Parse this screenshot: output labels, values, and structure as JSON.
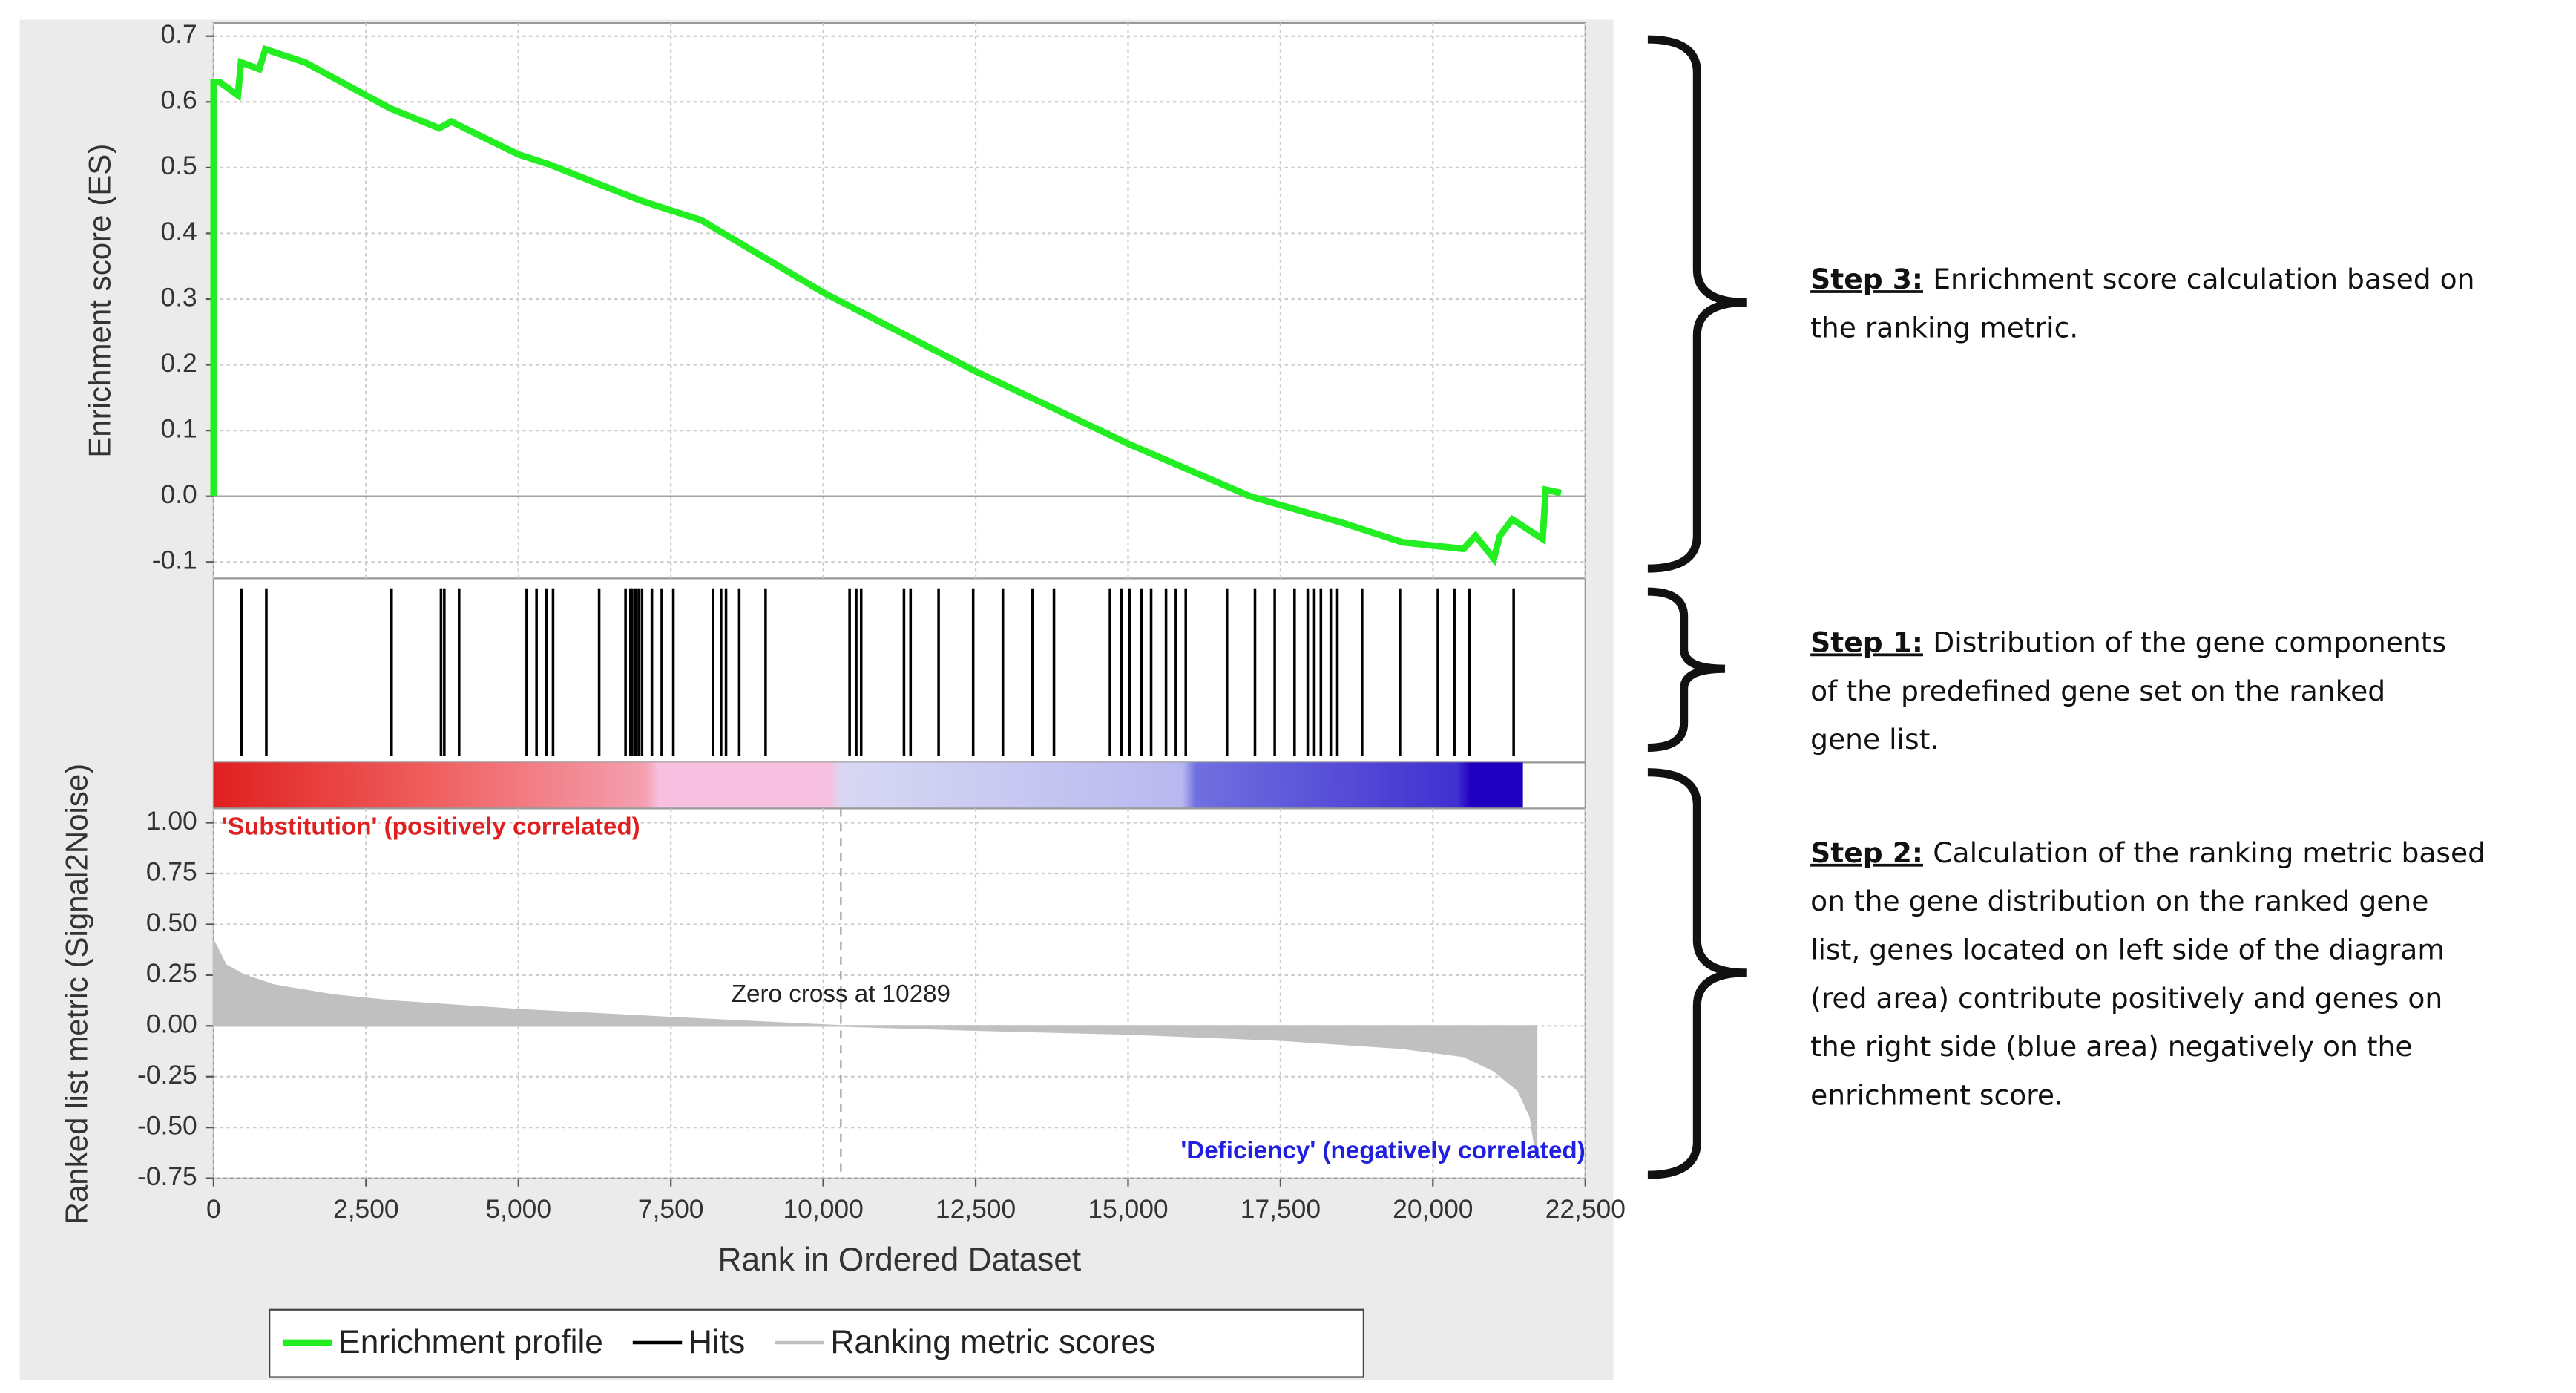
{
  "chart_data": [
    {
      "type": "line",
      "name": "Enrichment profile",
      "ylabel": "Enrichment score (ES)",
      "color": "#22ee22",
      "x": [
        0,
        0,
        100,
        400,
        450,
        750,
        850,
        1500,
        2900,
        3700,
        3900,
        5000,
        5500,
        7000,
        8000,
        10000,
        12500,
        15000,
        17000,
        18500,
        19500,
        20500,
        20700,
        21000,
        21100,
        21300,
        21800,
        21850,
        22100
      ],
      "values": [
        0,
        0.63,
        0.63,
        0.61,
        0.66,
        0.65,
        0.68,
        0.66,
        0.59,
        0.56,
        0.57,
        0.52,
        0.505,
        0.45,
        0.42,
        0.31,
        0.19,
        0.08,
        0.0,
        -0.04,
        -0.07,
        -0.08,
        -0.06,
        -0.095,
        -0.06,
        -0.035,
        -0.065,
        0.01,
        0.005
      ],
      "xlim": [
        0,
        22500
      ],
      "ylim": [
        -0.125,
        0.72
      ],
      "yticks": [
        -0.1,
        {
          "value": 0,
          "label": "0.0"
        },
        0.1,
        0.2,
        0.3,
        0.4,
        0.5,
        0.6,
        0.7
      ],
      "grid": true
    },
    {
      "type": "hits",
      "name": "Hits",
      "color": "#000000",
      "xlim": [
        0,
        22500
      ],
      "x": [
        459,
        865,
        2919,
        3730,
        3784,
        4027,
        5135,
        5297,
        5459,
        5568,
        6324,
        6757,
        6838,
        6865,
        6919,
        6973,
        7027,
        7189,
        7351,
        7541,
        8189,
        8324,
        8405,
        8622,
        9054,
        10432,
        10541,
        10622,
        11324,
        11432,
        11892,
        12459,
        12946,
        13432,
        13784,
        14703,
        14892,
        15027,
        15216,
        15378,
        15622,
        15784,
        15946,
        16622,
        17081,
        17405,
        17730,
        17946,
        18054,
        18162,
        18324,
        18432,
        18838,
        19459,
        20081,
        20351,
        20595,
        21324
      ]
    },
    {
      "type": "area",
      "name": "Ranking metric scores",
      "color": "#c0c0c0",
      "xlabel": "Rank in Ordered Dataset",
      "ylabel": "Ranked list metric (Signal2Noise)",
      "x": [
        0,
        200,
        500,
        1000,
        2000,
        3000,
        5000,
        7500,
        10289,
        12500,
        15000,
        17500,
        19500,
        20500,
        21000,
        21400,
        21600,
        21700
      ],
      "values": [
        0.42,
        0.3,
        0.25,
        0.2,
        0.15,
        0.12,
        0.08,
        0.04,
        0,
        -0.02,
        -0.04,
        -0.07,
        -0.11,
        -0.15,
        -0.22,
        -0.32,
        -0.45,
        -0.65
      ],
      "xlim": [
        0,
        22500
      ],
      "ylim": [
        -0.75,
        1.07
      ],
      "xticks": [
        0,
        {
          "value": 2500,
          "label": "2,500"
        },
        {
          "value": 5000,
          "label": "5,000"
        },
        {
          "value": 7500,
          "label": "7,500"
        },
        {
          "value": 10000,
          "label": "10,000"
        },
        {
          "value": 12500,
          "label": "12,500"
        },
        {
          "value": 15000,
          "label": "15,000"
        },
        {
          "value": 17500,
          "label": "17,500"
        },
        {
          "value": 20000,
          "label": "20,000"
        },
        {
          "value": 22500,
          "label": "22,500"
        }
      ],
      "yticks": [
        {
          "value": -0.75,
          "label": "-0.75"
        },
        {
          "value": -0.5,
          "label": "-0.50"
        },
        {
          "value": -0.25,
          "label": "-0.25"
        },
        {
          "value": 0,
          "label": "0.00"
        },
        {
          "value": 0.25,
          "label": "0.25"
        },
        {
          "value": 0.5,
          "label": "0.50"
        },
        {
          "value": 0.75,
          "label": "0.75"
        },
        {
          "value": 1,
          "label": "1.00"
        }
      ],
      "grid": true,
      "zero_cross": 10289,
      "annotations": {
        "positive": "'Substitution' (positively correlated)",
        "zero": "Zero cross at 10289",
        "negative": "'Deficiency' (negatively correlated)"
      }
    }
  ],
  "steps": [
    {
      "label": "Step 3:",
      "lines": [
        "Enrichment score calculation based on",
        "the ranking metric."
      ]
    },
    {
      "label": "Step 1:",
      "lines": [
        "Distribution of the gene components",
        "of the predefined gene set on the ranked",
        "gene list."
      ]
    },
    {
      "label": "Step 2:",
      "lines": [
        "Calculation of the ranking metric based",
        "on the gene distribution on the ranked gene",
        "list, genes located on left side of the diagram",
        "(red area) contribute positively and genes on",
        "the right side (blue area) negatively on the",
        "enrichment score."
      ]
    }
  ]
}
